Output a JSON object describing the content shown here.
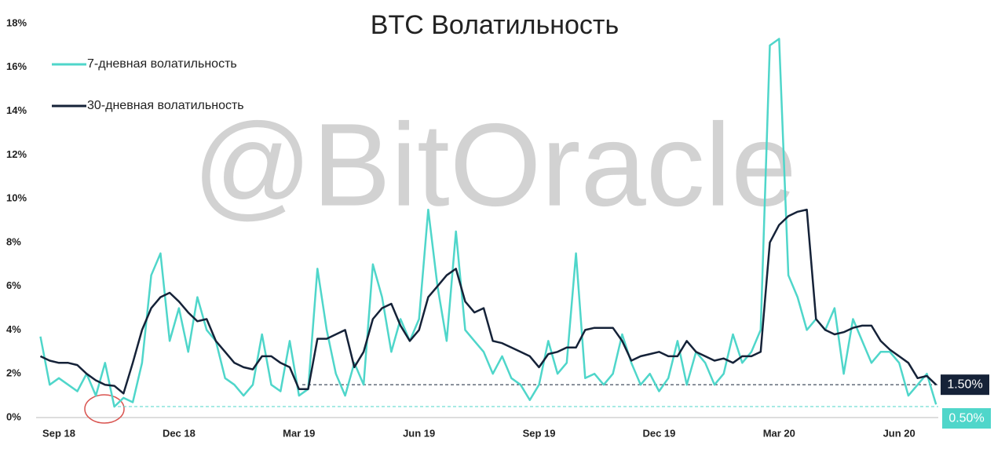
{
  "chart_data": {
    "type": "line",
    "title": "BTC Волатильность",
    "watermark": "@BitOracle",
    "categories": [
      null,
      null,
      "Sep 18",
      null,
      null,
      null,
      null,
      null,
      null,
      null,
      null,
      null,
      null,
      null,
      null,
      "Dec 18",
      null,
      null,
      null,
      null,
      null,
      null,
      null,
      null,
      null,
      null,
      null,
      null,
      "Mar 19",
      null,
      null,
      null,
      null,
      null,
      null,
      null,
      null,
      null,
      null,
      null,
      null,
      "Jun 19",
      null,
      null,
      null,
      null,
      null,
      null,
      null,
      null,
      null,
      null,
      null,
      null,
      "Sep 19",
      null,
      null,
      null,
      null,
      null,
      null,
      null,
      null,
      null,
      null,
      null,
      null,
      "Dec 19",
      null,
      null,
      null,
      null,
      null,
      null,
      null,
      null,
      null,
      null,
      null,
      null,
      "Mar 20",
      null,
      null,
      null,
      null,
      null,
      null,
      null,
      null,
      null,
      null,
      null,
      null,
      "Jun 20",
      null,
      null,
      null,
      null
    ],
    "series": [
      {
        "name": "7-дневная волатильность",
        "color": "#4fd6ca",
        "values": [
          3.7,
          1.5,
          1.8,
          1.5,
          1.2,
          2.0,
          1.0,
          2.5,
          0.5,
          0.9,
          0.7,
          2.5,
          6.5,
          7.5,
          3.5,
          5.0,
          3.0,
          5.5,
          4.0,
          3.5,
          1.8,
          1.5,
          1.0,
          1.5,
          3.8,
          1.5,
          1.2,
          3.5,
          1.0,
          1.3,
          6.8,
          4.0,
          2.0,
          1.0,
          2.5,
          1.5,
          7.0,
          5.5,
          3.0,
          4.5,
          3.5,
          4.5,
          9.5,
          6.0,
          3.5,
          8.5,
          4.0,
          3.5,
          3.0,
          2.0,
          2.8,
          1.8,
          1.5,
          0.8,
          1.5,
          3.5,
          2.0,
          2.5,
          7.5,
          1.8,
          2.0,
          1.5,
          2.0,
          3.8,
          2.5,
          1.5,
          2.0,
          1.2,
          1.8,
          3.5,
          1.5,
          3.0,
          2.5,
          1.5,
          2.0,
          3.8,
          2.5,
          3.0,
          4.0,
          17.0,
          17.3,
          6.5,
          5.5,
          4.0,
          4.5,
          4.0,
          5.0,
          2.0,
          4.5,
          3.5,
          2.5,
          3.0,
          3.0,
          2.5,
          1.0,
          1.5,
          2.0,
          0.6
        ]
      },
      {
        "name": "30-дневная волатильность",
        "color": "#152238",
        "values": [
          2.8,
          2.6,
          2.5,
          2.5,
          2.4,
          2.0,
          1.7,
          1.5,
          1.45,
          1.1,
          2.5,
          4.0,
          5.0,
          5.5,
          5.7,
          5.3,
          4.8,
          4.4,
          4.5,
          3.5,
          3.0,
          2.5,
          2.3,
          2.2,
          2.8,
          2.8,
          2.5,
          2.3,
          1.3,
          1.3,
          3.6,
          3.6,
          3.8,
          4.0,
          2.3,
          3.0,
          4.5,
          5.0,
          5.2,
          4.2,
          3.5,
          4.0,
          5.5,
          6.0,
          6.5,
          6.8,
          5.3,
          4.8,
          5.0,
          3.5,
          3.4,
          3.2,
          3.0,
          2.8,
          2.3,
          2.9,
          3.0,
          3.2,
          3.2,
          4.0,
          4.1,
          4.1,
          4.1,
          3.5,
          2.6,
          2.8,
          2.9,
          3.0,
          2.8,
          2.8,
          3.5,
          3.0,
          2.8,
          2.6,
          2.7,
          2.5,
          2.8,
          2.8,
          3.0,
          8.0,
          8.8,
          9.2,
          9.4,
          9.5,
          4.5,
          4.0,
          3.8,
          3.9,
          4.1,
          4.2,
          4.2,
          3.5,
          3.1,
          2.8,
          2.5,
          1.8,
          1.9,
          1.5
        ]
      }
    ],
    "reference_lines": [
      {
        "value": 1.5,
        "label": "1.50%",
        "color": "#152238"
      },
      {
        "value": 0.5,
        "label": "0.50%",
        "color": "#4fd6ca"
      }
    ],
    "ylim": [
      0,
      18
    ],
    "yticks": [
      {
        "value": 0,
        "label": "0%"
      },
      {
        "value": 2,
        "label": "2%"
      },
      {
        "value": 4,
        "label": "4%"
      },
      {
        "value": 6,
        "label": "6%"
      },
      {
        "value": 8,
        "label": "8%"
      },
      {
        "value": 10,
        "label": "10%"
      },
      {
        "value": 12,
        "label": "12%"
      },
      {
        "value": 14,
        "label": "14%"
      },
      {
        "value": 16,
        "label": "16%"
      },
      {
        "value": 18,
        "label": "18%"
      }
    ]
  }
}
